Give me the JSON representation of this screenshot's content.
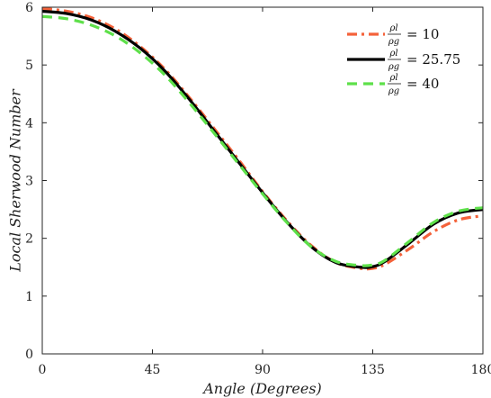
{
  "chart_data": {
    "type": "line",
    "xlabel": "Angle (Degrees)",
    "ylabel": "Local Sherwood Number",
    "xlim": [
      0,
      180
    ],
    "ylim": [
      0,
      6
    ],
    "xticks": [
      0,
      45,
      90,
      135,
      180
    ],
    "yticks": [
      0,
      1,
      2,
      3,
      4,
      5,
      6
    ],
    "grid": false,
    "legend_position": "top-right",
    "series": [
      {
        "legend_num": "ρl",
        "legend_den": "ρg",
        "legend_value": "= 10",
        "color": "#f4623a",
        "style": "dashdot",
        "x": [
          0,
          10,
          20,
          30,
          40,
          50,
          60,
          70,
          80,
          90,
          100,
          110,
          120,
          130,
          135,
          140,
          150,
          160,
          170,
          180
        ],
        "y": [
          5.98,
          5.93,
          5.82,
          5.62,
          5.32,
          4.93,
          4.44,
          3.91,
          3.37,
          2.81,
          2.3,
          1.87,
          1.58,
          1.48,
          1.48,
          1.55,
          1.82,
          2.12,
          2.32,
          2.39
        ]
      },
      {
        "legend_num": "ρl",
        "legend_den": "ρg",
        "legend_value": "= 25.75",
        "color": "#000000",
        "style": "solid",
        "x": [
          0,
          10,
          20,
          30,
          40,
          50,
          60,
          70,
          80,
          90,
          100,
          110,
          120,
          130,
          135,
          140,
          150,
          160,
          170,
          180
        ],
        "y": [
          5.93,
          5.89,
          5.78,
          5.58,
          5.29,
          4.9,
          4.41,
          3.87,
          3.33,
          2.79,
          2.28,
          1.85,
          1.58,
          1.5,
          1.51,
          1.6,
          1.92,
          2.25,
          2.44,
          2.5
        ]
      },
      {
        "legend_num": "ρl",
        "legend_den": "ρg",
        "legend_value": "= 40",
        "color": "#5ee04a",
        "style": "dashed",
        "x": [
          0,
          10,
          20,
          30,
          40,
          50,
          60,
          70,
          80,
          90,
          100,
          110,
          120,
          130,
          135,
          140,
          150,
          160,
          170,
          180
        ],
        "y": [
          5.84,
          5.8,
          5.69,
          5.5,
          5.21,
          4.83,
          4.35,
          3.83,
          3.3,
          2.77,
          2.27,
          1.85,
          1.6,
          1.53,
          1.54,
          1.62,
          1.95,
          2.28,
          2.47,
          2.53
        ]
      }
    ]
  }
}
